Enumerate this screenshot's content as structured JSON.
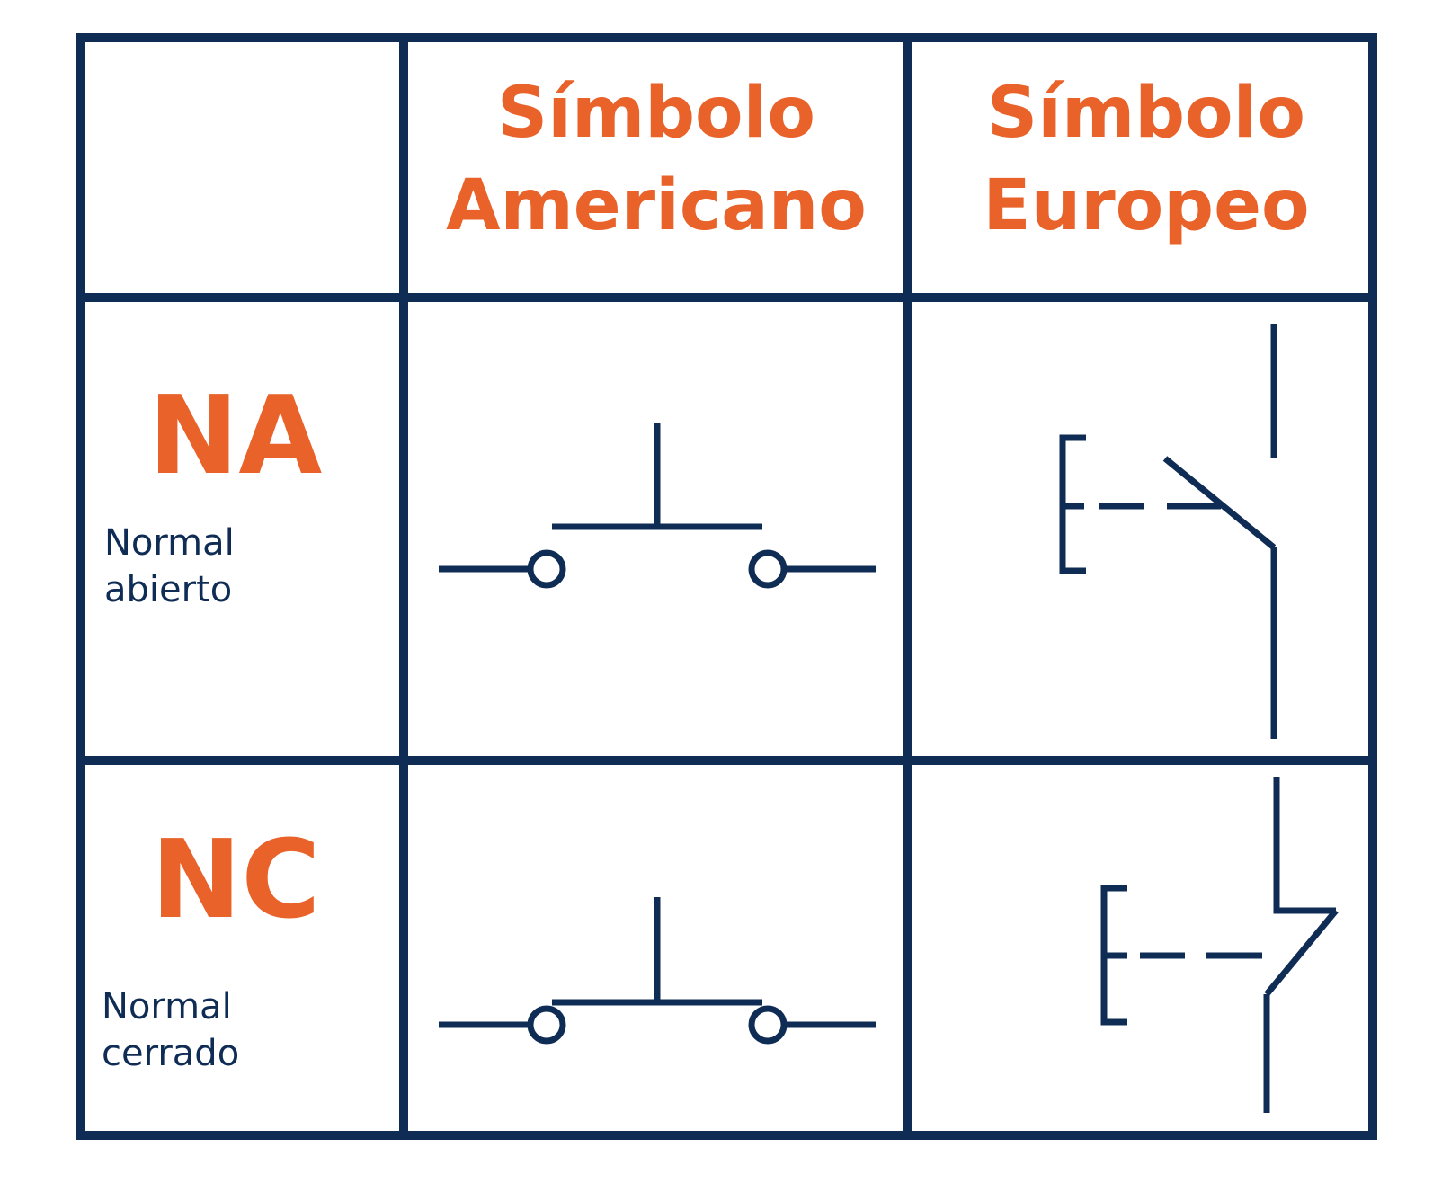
{
  "header": {
    "american": [
      "Símbolo",
      "Americano"
    ],
    "european": [
      "Símbolo",
      "Europeo"
    ]
  },
  "rows": [
    {
      "code": "NA",
      "desc": [
        "Normal",
        "abierto"
      ]
    },
    {
      "code": "NC",
      "desc": [
        "Normal",
        "cerrado"
      ]
    }
  ],
  "colors": {
    "accent": "#E8622A",
    "line": "#0F2C55",
    "background": "#FFFFFF"
  }
}
